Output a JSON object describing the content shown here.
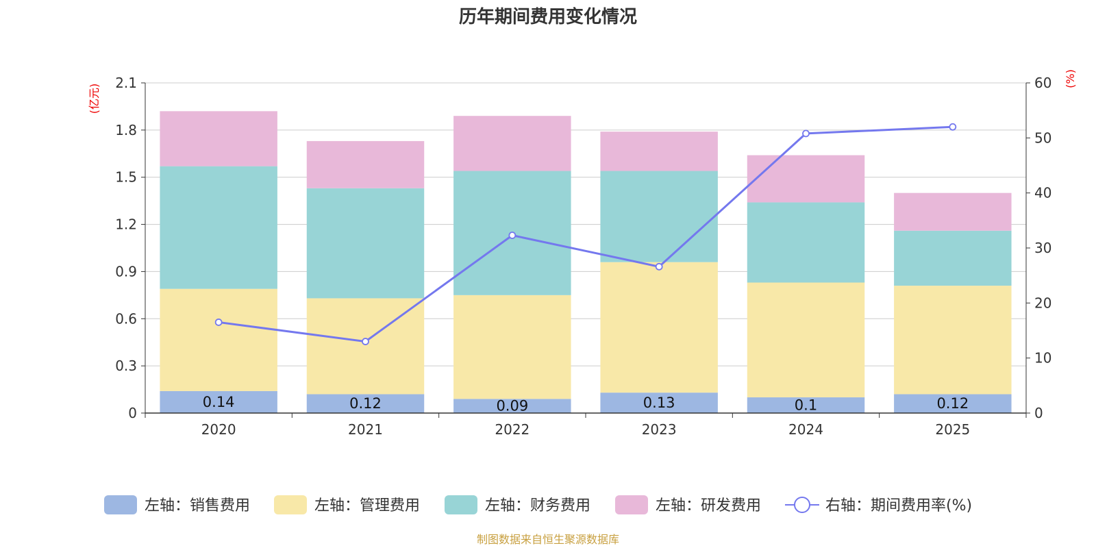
{
  "chart_data": {
    "type": "bar",
    "stacked": true,
    "title": "历年期间费用变化情况",
    "categories": [
      "2020",
      "2021",
      "2022",
      "2023",
      "2024",
      "2025"
    ],
    "left_axis": {
      "unit_label": "(亿元)",
      "ylim": [
        0,
        2.1
      ],
      "ticks": [
        "0",
        "0.3",
        "0.6",
        "0.9",
        "1.2",
        "1.5",
        "1.8",
        "2.1"
      ],
      "tick_values": [
        0,
        0.3,
        0.6,
        0.9,
        1.2,
        1.5,
        1.8,
        2.1
      ]
    },
    "right_axis": {
      "unit_label": "(%)",
      "ylim": [
        0,
        60
      ],
      "ticks": [
        "0",
        "10",
        "20",
        "30",
        "40",
        "50",
        "60"
      ],
      "tick_values": [
        0,
        10,
        20,
        30,
        40,
        50,
        60
      ]
    },
    "series": [
      {
        "name": "左轴：销售费用",
        "type": "bar",
        "color": "#9db7e2",
        "values": [
          0.14,
          0.12,
          0.09,
          0.13,
          0.1,
          0.12
        ],
        "labels": [
          "0.14",
          "0.12",
          "0.09",
          "0.13",
          "0.1",
          "0.12"
        ]
      },
      {
        "name": "左轴：管理费用",
        "type": "bar",
        "color": "#f8e8a8",
        "values": [
          0.65,
          0.61,
          0.66,
          0.83,
          0.73,
          0.69
        ]
      },
      {
        "name": "左轴：财务费用",
        "type": "bar",
        "color": "#98d4d6",
        "values": [
          0.78,
          0.7,
          0.79,
          0.58,
          0.51,
          0.35
        ]
      },
      {
        "name": "左轴：研发费用",
        "type": "bar",
        "color": "#e8b8d9",
        "values": [
          0.35,
          0.3,
          0.35,
          0.25,
          0.3,
          0.24
        ]
      },
      {
        "name": "右轴：期间费用率(%)",
        "type": "line",
        "axis": "right",
        "color": "#7478ee",
        "values": [
          16.5,
          13.0,
          32.3,
          26.6,
          50.8,
          52.0
        ]
      }
    ],
    "source": "制图数据来自恒生聚源数据库",
    "colors": {
      "title": "#333333",
      "axis_unit": "#ee0000",
      "tick": "#333333",
      "grid": "#cccccc",
      "source": "#c8a040"
    }
  }
}
